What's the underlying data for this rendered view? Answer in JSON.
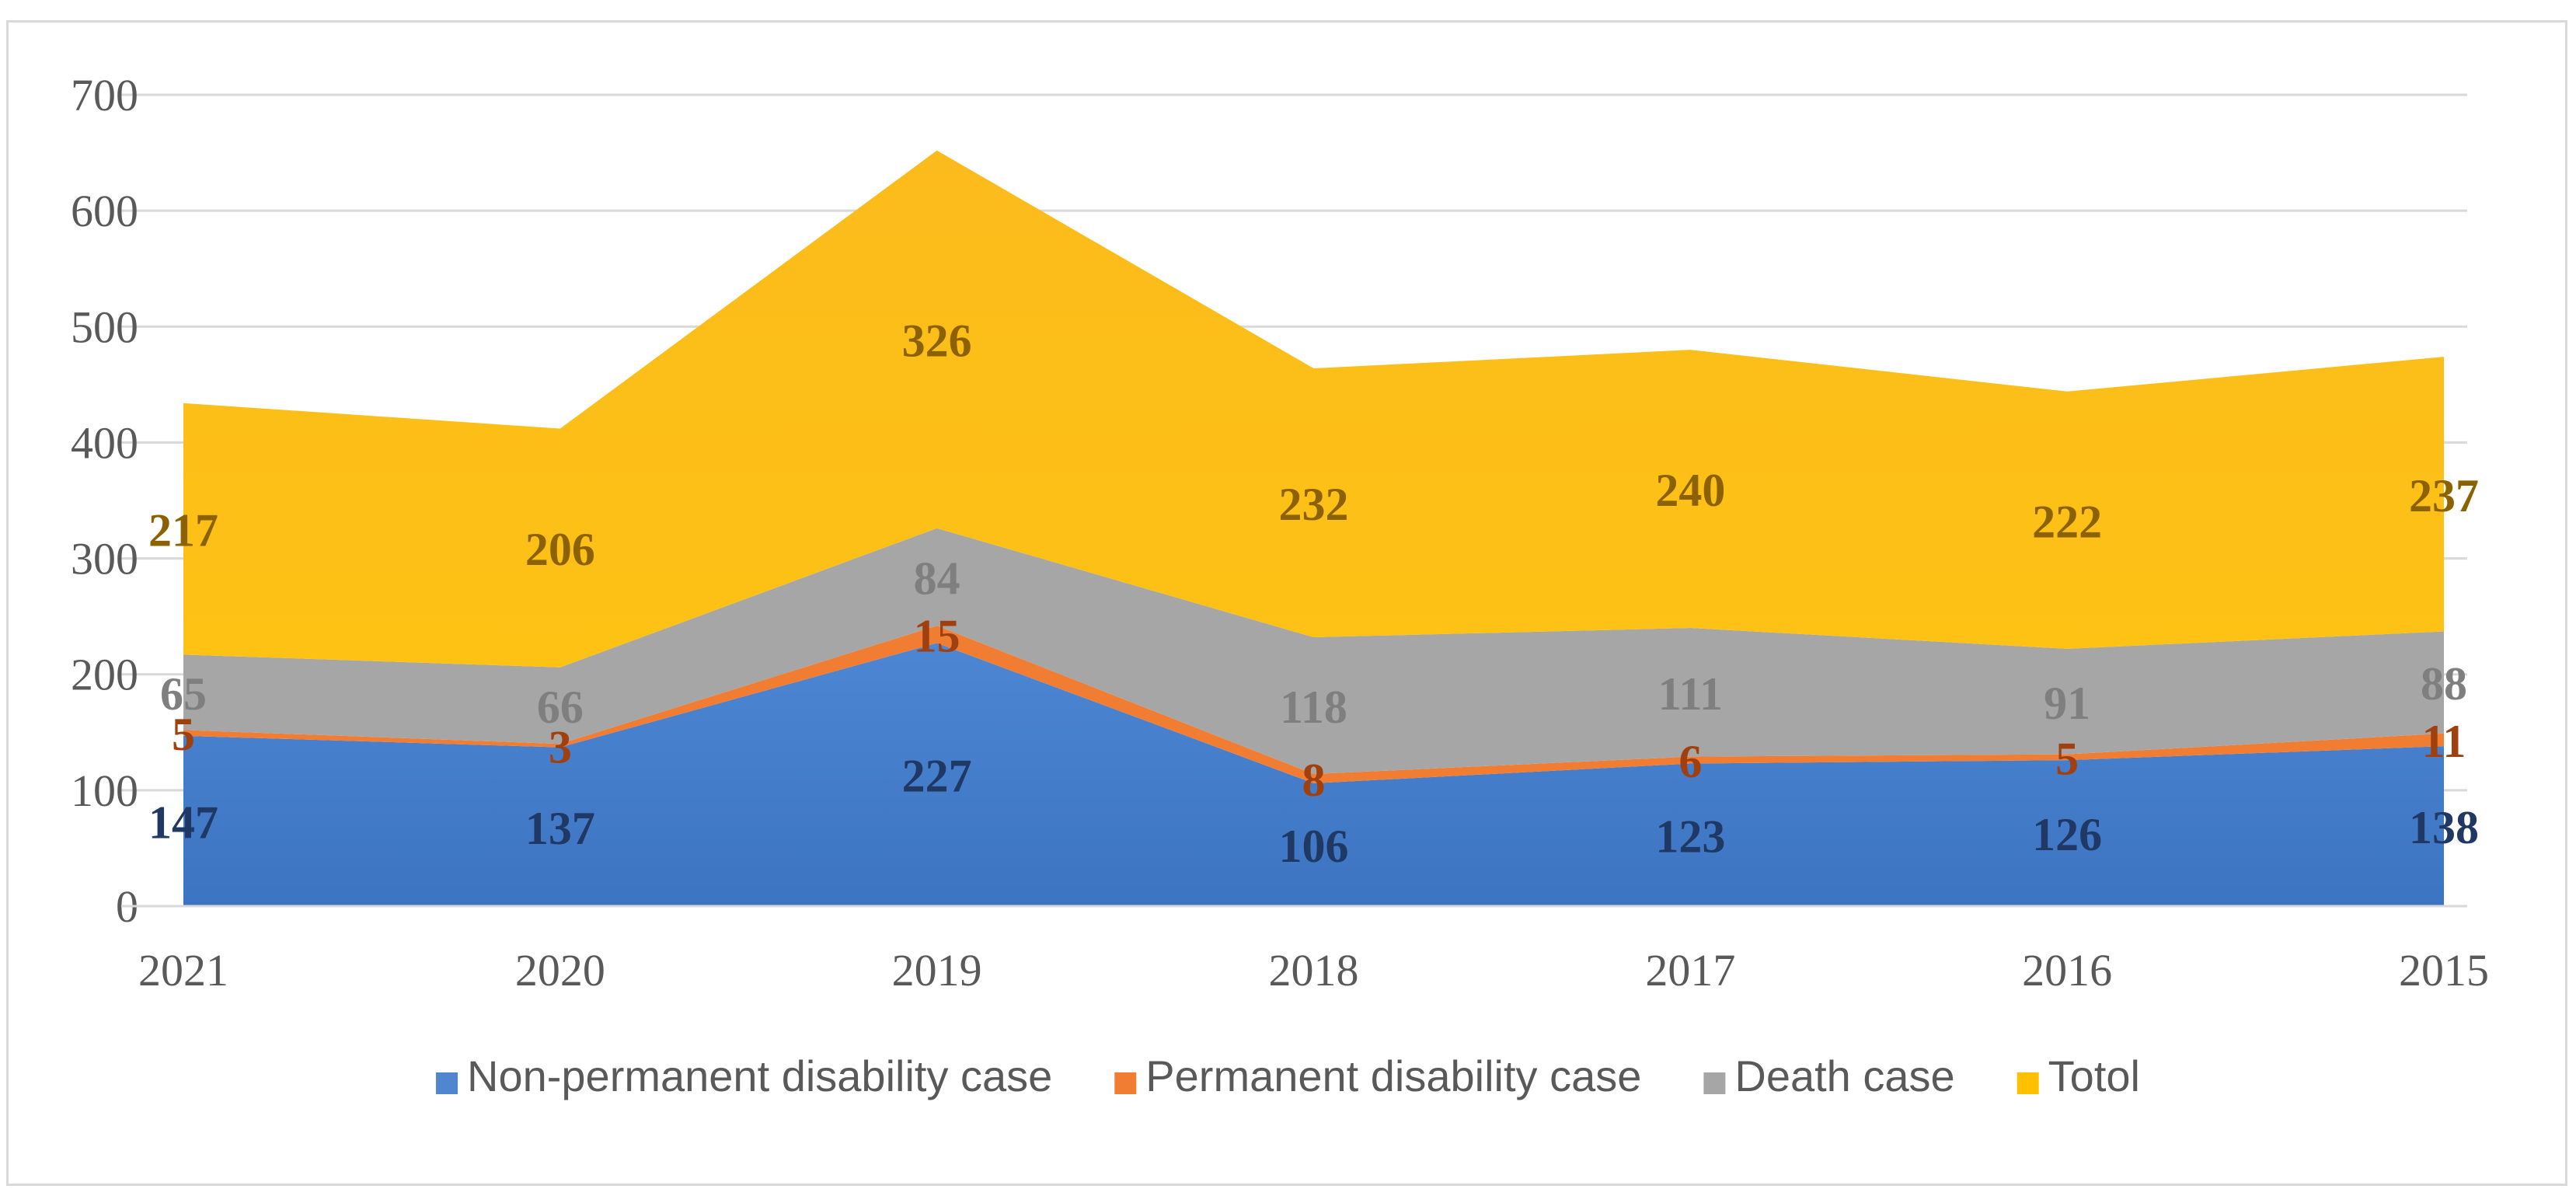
{
  "chart_data": {
    "type": "area",
    "stacked": true,
    "categories": [
      "2021",
      "2020",
      "2019",
      "2018",
      "2017",
      "2016",
      "2015"
    ],
    "ylim": [
      0,
      700
    ],
    "yticks": [
      0,
      100,
      200,
      300,
      400,
      500,
      600,
      700
    ],
    "grid": true,
    "legend_position": "bottom",
    "series": [
      {
        "name": "Non-permanent disability case",
        "color": "#4f86cf",
        "label_color": "#1f3864",
        "values": [
          147,
          137,
          227,
          106,
          123,
          126,
          138
        ]
      },
      {
        "name": "Permanent disability case",
        "color": "#f07d32",
        "label_color": "#a0400f",
        "values": [
          5,
          3,
          15,
          8,
          6,
          5,
          11
        ]
      },
      {
        "name": "Death case",
        "color": "#a6a6a6",
        "label_color": "#7f7f7f",
        "values": [
          65,
          66,
          84,
          118,
          111,
          91,
          88
        ]
      },
      {
        "name": "Totol",
        "color": "#ffc000",
        "label_color": "#8c6100",
        "values": [
          217,
          206,
          326,
          232,
          240,
          222,
          237
        ]
      }
    ]
  }
}
